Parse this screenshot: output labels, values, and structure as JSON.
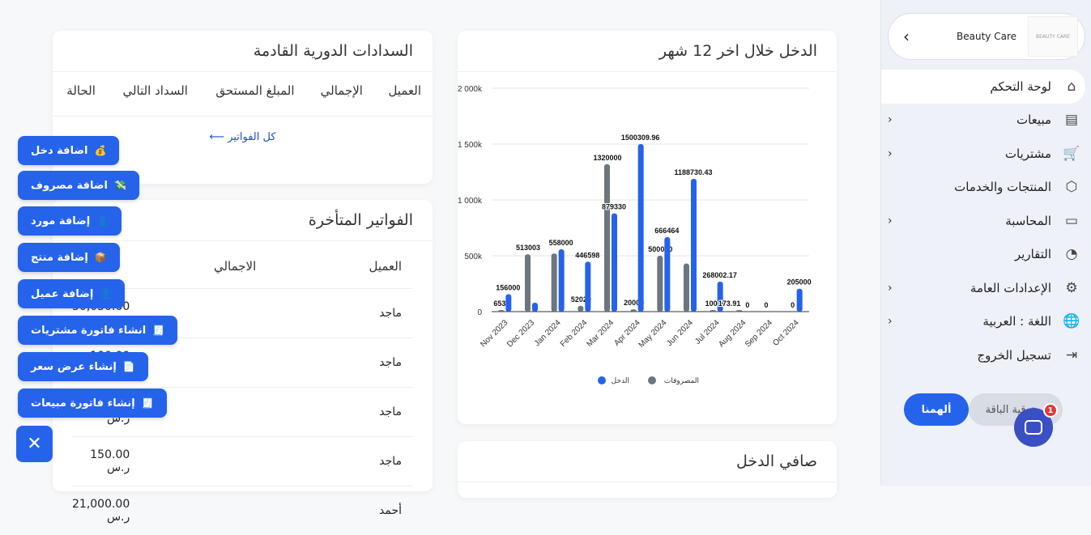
{
  "sidebar": {
    "brand": "Beauty Care",
    "logo_text": "BEAUTY CARE",
    "items": [
      {
        "label": "لوحة التحكم",
        "icon": "⌂"
      },
      {
        "label": "مبيعات",
        "icon": "▤",
        "chev": "‹"
      },
      {
        "label": "مشتريات",
        "icon": "🛒",
        "chev": "‹"
      },
      {
        "label": "المنتجات والخدمات",
        "icon": "⬡"
      },
      {
        "label": "المحاسبة",
        "icon": "▭",
        "chev": "‹"
      },
      {
        "label": "التقارير",
        "icon": "◔"
      },
      {
        "label": "الإعدادات العامة",
        "icon": "⚙",
        "chev": "‹"
      },
      {
        "label": "اللغة : العربية",
        "icon": "🌐",
        "chev": "‹"
      },
      {
        "label": "تسجيل الخروج",
        "icon": "⇥"
      }
    ],
    "upgrade": "ترقية الباقة",
    "inspire": "ألهمنا",
    "chat_badge": "1"
  },
  "upcoming": {
    "title": "السدادات الدورية القادمة",
    "headers": [
      "العميل",
      "الإجمالي",
      "المبلغ المستحق",
      "السداد التالي",
      "الحالة"
    ],
    "link": "كل الفواتير ⟵"
  },
  "late": {
    "title": "الفواتير المتأخرة",
    "headers": [
      "العميل",
      "الاجمالي"
    ],
    "rows": [
      {
        "client": "ماجد",
        "total": "50,050.00 ر.س"
      },
      {
        "client": "ماجد",
        "total": "100.00 ر.س"
      },
      {
        "client": "ماجد",
        "total": "100.00 ر.س"
      },
      {
        "client": "ماجد",
        "total": "150.00 ر.س"
      },
      {
        "client": "أحمد",
        "total": "21,000.00 ر.س"
      }
    ]
  },
  "net": {
    "title": "صافي الدخل"
  },
  "fabs": [
    {
      "label": "اضافة دخل",
      "icon": "💰"
    },
    {
      "label": "اضافة مصروف",
      "icon": "💸"
    },
    {
      "label": "إضافة مورد",
      "icon": "👤"
    },
    {
      "label": "إضافة منتج",
      "icon": "📦"
    },
    {
      "label": "إضافة عميل",
      "icon": "👤"
    },
    {
      "label": "انشاء فاتورة مشتريات",
      "icon": "🧾"
    },
    {
      "label": "إنشاء عرض سعر",
      "icon": "📄"
    },
    {
      "label": "إنشاء فاتورة مبيعات",
      "icon": "🧾"
    }
  ],
  "close": "✕",
  "chart_data": {
    "type": "bar",
    "title": "الدخل خلال اخر 12 شهر",
    "categories": [
      "Nov 2023",
      "Dec 2023",
      "Jan 2024",
      "Feb 2024",
      "Mar 2024",
      "Apr 2024",
      "May 2024",
      "Jun 2024",
      "Jul 2024",
      "Aug 2024",
      "Sep 2024",
      "Oct 2024"
    ],
    "series": [
      {
        "name": "المصروفات",
        "color": "#6b767d",
        "values": [
          6530,
          513003,
          520000,
          52029,
          1320000,
          20000,
          500000,
          430000,
          1000,
          173.91,
          0,
          0
        ],
        "labels": [
          "6530",
          "513003",
          "",
          "52029",
          "1320000",
          "20000",
          "500000",
          "",
          "1000",
          "173.91",
          "0",
          "0"
        ]
      },
      {
        "name": "الدخل",
        "color": "#2563eb",
        "values": [
          156000,
          80000,
          558000,
          446598,
          879330,
          1500309.96,
          666464,
          1188730.43,
          268002.17,
          0,
          0,
          205000
        ],
        "labels": [
          "156000",
          "",
          "558000",
          "446598",
          "879330",
          "1500309.96",
          "666464",
          "1188730.43",
          "268002.17",
          "0",
          "",
          "205000"
        ]
      }
    ],
    "yticks": [
      "0",
      "500k",
      "1 000k",
      "1 500k",
      "2 000k"
    ],
    "ylim": [
      0,
      2000000
    ],
    "legend": "bottom"
  }
}
